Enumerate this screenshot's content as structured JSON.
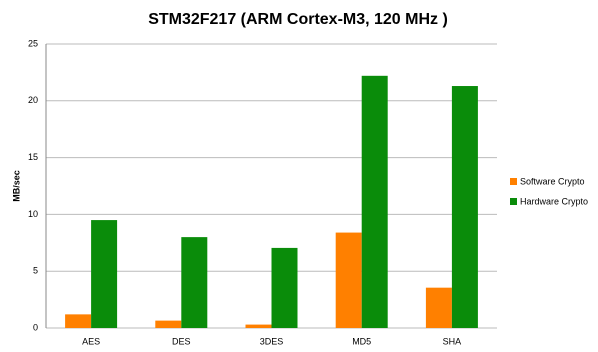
{
  "chart_data": {
    "type": "bar",
    "title": "STM32F217 (ARM Cortex-M3, 120 MHz )",
    "y_label": "MB/sec",
    "categories": [
      "AES",
      "DES",
      "3DES",
      "MD5",
      "SHA"
    ],
    "series": [
      {
        "name": "Software Crypto",
        "color": "#ff8000",
        "values": [
          1.2,
          0.65,
          0.3,
          8.4,
          3.55
        ]
      },
      {
        "name": "Hardware Crypto",
        "color": "#0a8c0a",
        "values": [
          9.5,
          8.0,
          7.05,
          22.2,
          21.3
        ]
      }
    ],
    "ylim": [
      0,
      25
    ],
    "yticks": [
      0,
      5,
      10,
      15,
      20,
      25
    ],
    "grid": true,
    "legend": "right"
  }
}
